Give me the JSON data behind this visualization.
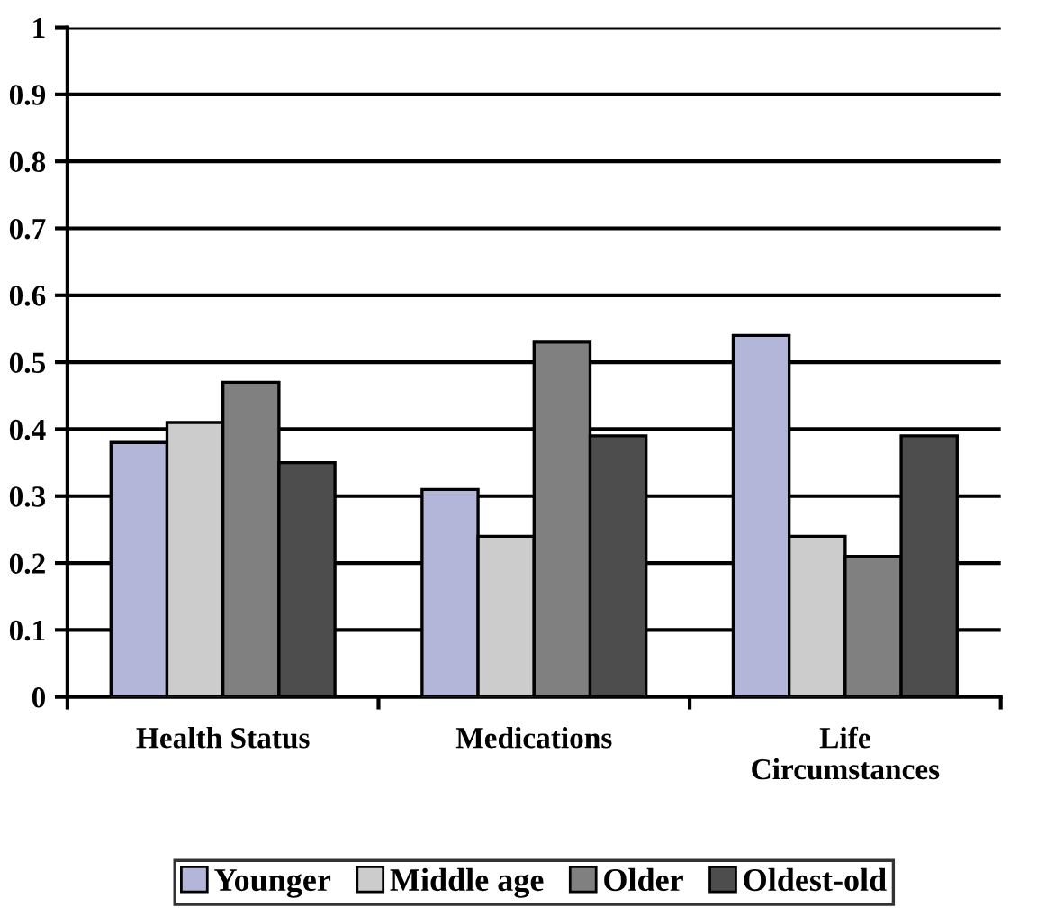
{
  "chart_data": {
    "type": "bar",
    "categories": [
      "Health Status",
      "Medications",
      "Life\nCircumstances"
    ],
    "series": [
      {
        "name": "Younger",
        "color": "#b3b6d8",
        "values": [
          0.38,
          0.31,
          0.54
        ]
      },
      {
        "name": "Middle age",
        "color": "#cccccc",
        "values": [
          0.41,
          0.24,
          0.24
        ]
      },
      {
        "name": "Older",
        "color": "#808080",
        "values": [
          0.47,
          0.53,
          0.21
        ]
      },
      {
        "name": "Oldest-old",
        "color": "#4d4d4d",
        "values": [
          0.35,
          0.39,
          0.39
        ]
      }
    ],
    "ylim": [
      0,
      1
    ],
    "yticks": [
      0,
      0.1,
      0.2,
      0.3,
      0.4,
      0.5,
      0.6,
      0.7,
      0.8,
      0.9,
      1
    ],
    "grid": "y",
    "legend": "bottom"
  }
}
